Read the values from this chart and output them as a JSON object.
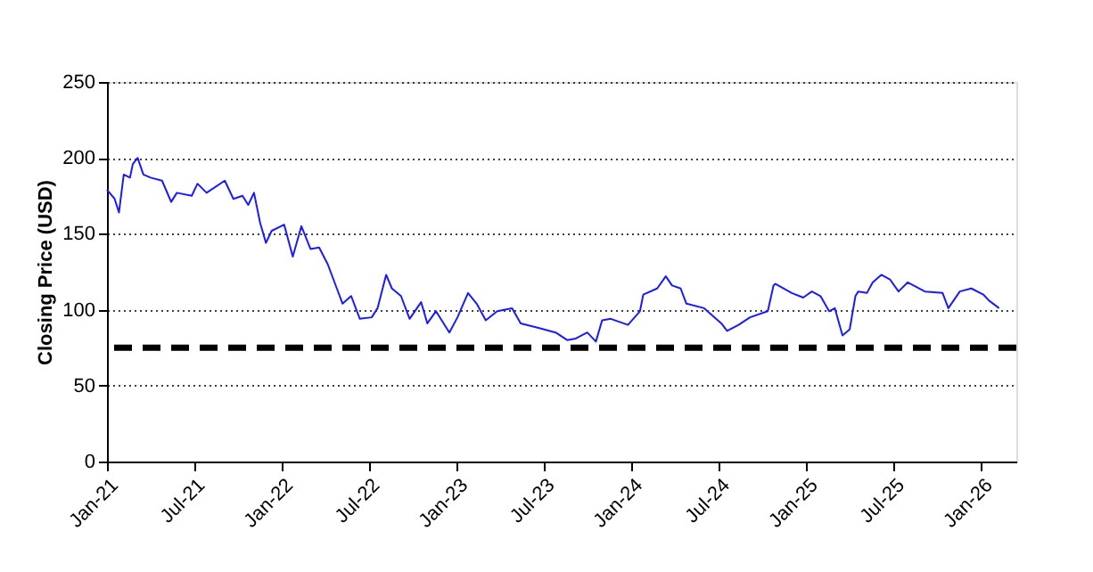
{
  "chart_data": {
    "type": "line",
    "ylabel": "Closing Price (USD)",
    "x": [
      "2021-01-01",
      "2021-01-17",
      "2021-01-26",
      "2021-02-05",
      "2021-02-18",
      "2021-02-24",
      "2021-03-06",
      "2021-03-18",
      "2021-04-02",
      "2021-04-26",
      "2021-05-15",
      "2021-05-27",
      "2021-06-27",
      "2021-07-09",
      "2021-07-28",
      "2021-09-04",
      "2021-09-22",
      "2021-10-11",
      "2021-10-23",
      "2021-11-04",
      "2021-11-17",
      "2021-11-29",
      "2021-12-11",
      "2022-01-06",
      "2022-01-24",
      "2022-02-11",
      "2022-03-02",
      "2022-03-20",
      "2022-04-07",
      "2022-04-26",
      "2022-05-08",
      "2022-05-26",
      "2022-06-13",
      "2022-07-08",
      "2022-07-20",
      "2022-08-07",
      "2022-08-19",
      "2022-09-07",
      "2022-09-25",
      "2022-10-19",
      "2022-11-01",
      "2022-11-19",
      "2022-12-01",
      "2022-12-17",
      "2023-01-03",
      "2023-01-25",
      "2023-02-12",
      "2023-03-03",
      "2023-03-27",
      "2023-04-27",
      "2023-05-15",
      "2023-06-21",
      "2023-07-27",
      "2023-08-20",
      "2023-09-07",
      "2023-10-01",
      "2023-10-19",
      "2023-11-01",
      "2023-11-19",
      "2023-12-25",
      "2024-01-19",
      "2024-01-26",
      "2024-02-24",
      "2024-03-13",
      "2024-03-26",
      "2024-04-13",
      "2024-04-25",
      "2024-06-01",
      "2024-07-07",
      "2024-07-19",
      "2024-08-12",
      "2024-09-05",
      "2024-10-12",
      "2024-10-24",
      "2024-10-28",
      "2024-12-01",
      "2024-12-25",
      "2025-01-12",
      "2025-01-30",
      "2025-02-17",
      "2025-03-01",
      "2025-03-17",
      "2025-04-01",
      "2025-04-13",
      "2025-04-19",
      "2025-05-07",
      "2025-05-19",
      "2025-06-06",
      "2025-06-24",
      "2025-07-12",
      "2025-07-31",
      "2025-09-05",
      "2025-10-12",
      "2025-10-24",
      "2025-11-17",
      "2025-12-11",
      "2026-01-05",
      "2026-01-17",
      "2026-02-07"
    ],
    "series": [
      {
        "color": "#1a1aff",
        "values": [
          179,
          173,
          164,
          189,
          187,
          196,
          200,
          189,
          187,
          185,
          171,
          177,
          175,
          183,
          177,
          185,
          173,
          175,
          169,
          177,
          157,
          144,
          152,
          156,
          135,
          155,
          140,
          141,
          130,
          114,
          104,
          109,
          94,
          95,
          101,
          123,
          114,
          109,
          94,
          105,
          91,
          99,
          93,
          85,
          95,
          111,
          104,
          93,
          99,
          101,
          91,
          88,
          85,
          80,
          81,
          85,
          79,
          93,
          94,
          90,
          99,
          110,
          114,
          122,
          116,
          114,
          104,
          101,
          91,
          86,
          90,
          95,
          99,
          116,
          117,
          111,
          108,
          112,
          109,
          99,
          101,
          83,
          87,
          109,
          112,
          111,
          118,
          123,
          120,
          112,
          118,
          112,
          111,
          101,
          112,
          114,
          110,
          106,
          101
        ]
      }
    ],
    "xlim": [
      "2021-01-01",
      "2026-03-15"
    ],
    "xticks": [
      {
        "value": "2021-01-01",
        "label": "Jan-21"
      },
      {
        "value": "2021-07-01",
        "label": "Jul-21"
      },
      {
        "value": "2022-01-01",
        "label": "Jan-22"
      },
      {
        "value": "2022-07-01",
        "label": "Jul-22"
      },
      {
        "value": "2023-01-01",
        "label": "Jan-23"
      },
      {
        "value": "2023-07-01",
        "label": "Jul-23"
      },
      {
        "value": "2024-01-01",
        "label": "Jan-24"
      },
      {
        "value": "2024-07-01",
        "label": "Jul-24"
      },
      {
        "value": "2025-01-01",
        "label": "Jan-25"
      },
      {
        "value": "2025-07-01",
        "label": "Jul-25"
      },
      {
        "value": "2026-01-01",
        "label": "Jan-26"
      }
    ],
    "ylim": [
      0,
      250
    ],
    "yticks": [
      0,
      50,
      100,
      150,
      200,
      250
    ],
    "grid": "y",
    "marker": "none",
    "line_style": "solid",
    "ref_lines": [
      {
        "axis": "y",
        "value": 75,
        "color": "#000000",
        "line_style": "dashed"
      }
    ]
  }
}
